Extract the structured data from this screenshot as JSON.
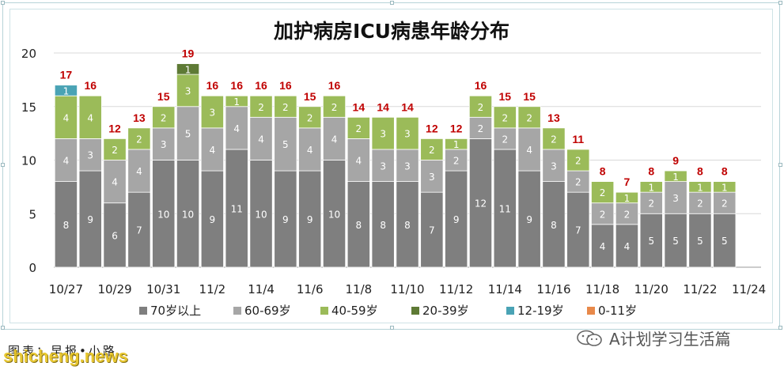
{
  "chart_data": {
    "type": "bar",
    "stacked": true,
    "title": "加护病房ICU病患年龄分布",
    "categories": [
      "10/27",
      "10/28",
      "10/29",
      "10/30",
      "10/31",
      "11/1",
      "11/2",
      "11/3",
      "11/4",
      "11/5",
      "11/6",
      "11/7",
      "11/8",
      "11/9",
      "11/10",
      "11/11",
      "11/12",
      "11/13",
      "11/14",
      "11/15",
      "11/16",
      "11/17",
      "11/18",
      "11/19",
      "11/20",
      "11/21",
      "11/22",
      "11/23",
      "11/24"
    ],
    "x_tick_labels": [
      "10/27",
      "10/29",
      "10/31",
      "11/2",
      "11/4",
      "11/6",
      "11/8",
      "11/10",
      "11/12",
      "11/14",
      "11/16",
      "11/18",
      "11/20",
      "11/22",
      "11/24"
    ],
    "series": [
      {
        "name": "70岁以上",
        "color": "#7f7f7f",
        "values": [
          8,
          9,
          6,
          7,
          10,
          10,
          9,
          11,
          10,
          9,
          9,
          10,
          8,
          8,
          8,
          7,
          9,
          12,
          11,
          9,
          8,
          7,
          4,
          4,
          5,
          5,
          5,
          5,
          null
        ]
      },
      {
        "name": "60-69岁",
        "color": "#a6a6a6",
        "values": [
          4,
          3,
          4,
          4,
          3,
          5,
          4,
          4,
          4,
          5,
          4,
          4,
          4,
          3,
          3,
          3,
          2,
          2,
          2,
          4,
          3,
          2,
          2,
          2,
          2,
          3,
          2,
          2,
          null
        ]
      },
      {
        "name": "40-59岁",
        "color": "#9bbb59",
        "values": [
          4,
          4,
          2,
          2,
          2,
          3,
          3,
          1,
          2,
          2,
          2,
          2,
          2,
          3,
          3,
          2,
          1,
          2,
          2,
          2,
          2,
          2,
          2,
          1,
          1,
          1,
          1,
          1,
          null
        ]
      },
      {
        "name": "20-39岁",
        "color": "#5e7a35",
        "values": [
          0,
          0,
          0,
          0,
          0,
          1,
          0,
          0,
          0,
          0,
          0,
          0,
          0,
          0,
          0,
          0,
          0,
          0,
          0,
          0,
          0,
          0,
          0,
          0,
          0,
          0,
          0,
          0,
          null
        ]
      },
      {
        "name": "12-19岁",
        "color": "#4aa3b5",
        "values": [
          1,
          0,
          0,
          0,
          0,
          0,
          0,
          0,
          0,
          0,
          0,
          0,
          0,
          0,
          0,
          0,
          0,
          0,
          0,
          0,
          0,
          0,
          0,
          0,
          0,
          0,
          0,
          0,
          null
        ]
      },
      {
        "name": "0-11岁",
        "color": "#e8894a",
        "values": [
          0,
          0,
          0,
          0,
          0,
          0,
          0,
          0,
          0,
          0,
          0,
          0,
          0,
          0,
          0,
          0,
          0,
          0,
          0,
          0,
          0,
          0,
          0,
          0,
          0,
          0,
          0,
          0,
          null
        ]
      }
    ],
    "totals": [
      17,
      16,
      12,
      13,
      15,
      19,
      16,
      16,
      16,
      16,
      15,
      16,
      14,
      14,
      14,
      12,
      12,
      16,
      15,
      15,
      13,
      11,
      8,
      7,
      8,
      9,
      8,
      8,
      null
    ],
    "ylim": [
      0,
      20
    ],
    "yticks": [
      0,
      5,
      10,
      15,
      20
    ],
    "grid": true,
    "legend_position": "bottom"
  },
  "source_label": "图表：早报•小路",
  "watermark": "shicheng.news",
  "wechat_label": "A计划学习生活篇",
  "colors": {
    "total_label": "#c00000",
    "frame_border": "#b7d3d8"
  }
}
